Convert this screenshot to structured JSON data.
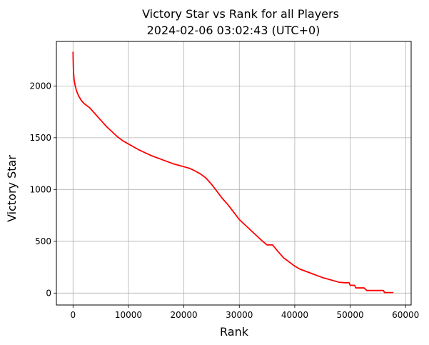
{
  "chart_data": {
    "type": "line",
    "title": "Victory Star vs Rank for all Players",
    "subtitle": "2024-02-06 03:02:43 (UTC+0)",
    "xlabel": "Rank",
    "ylabel": "Victory Star",
    "xlim": [
      -3000,
      61000
    ],
    "ylim": [
      -115,
      2430
    ],
    "grid": true,
    "xticks": [
      0,
      10000,
      20000,
      30000,
      40000,
      50000,
      60000
    ],
    "xtick_labels": [
      "0",
      "10000",
      "20000",
      "30000",
      "40000",
      "50000",
      "60000"
    ],
    "yticks": [
      0,
      500,
      1000,
      1500,
      2000
    ],
    "ytick_labels": [
      "0",
      "500",
      "1000",
      "1500",
      "2000"
    ],
    "series": [
      {
        "color": "#ff0000",
        "x": [
          0,
          50,
          100,
          200,
          400,
          600,
          800,
          1000,
          1500,
          2000,
          3000,
          4000,
          5000,
          6000,
          7000,
          8000,
          9000,
          10000,
          12000,
          14000,
          16000,
          18000,
          20000,
          21000,
          22000,
          23000,
          24000,
          25000,
          26000,
          27000,
          28000,
          29000,
          30000,
          31000,
          32000,
          33000,
          34000,
          35000,
          36000,
          37000,
          38000,
          39000,
          40000,
          41000,
          42000,
          43000,
          44000,
          45000,
          46000,
          47000,
          48000,
          49000,
          49800,
          50000,
          50800,
          51000,
          52500,
          53000,
          56000,
          56200,
          57800
        ],
        "y": [
          2330,
          2200,
          2130,
          2060,
          2000,
          1960,
          1930,
          1905,
          1860,
          1830,
          1790,
          1730,
          1670,
          1610,
          1560,
          1510,
          1470,
          1440,
          1380,
          1330,
          1290,
          1250,
          1220,
          1205,
          1180,
          1150,
          1110,
          1050,
          980,
          910,
          850,
          780,
          710,
          660,
          610,
          560,
          510,
          465,
          465,
          400,
          340,
          300,
          260,
          230,
          210,
          190,
          170,
          150,
          135,
          120,
          105,
          100,
          100,
          75,
          75,
          50,
          50,
          25,
          25,
          5,
          5
        ]
      }
    ]
  }
}
